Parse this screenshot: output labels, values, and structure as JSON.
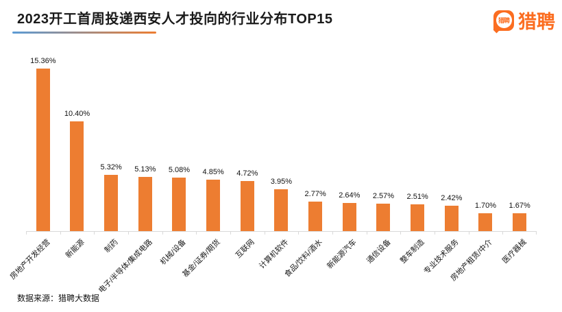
{
  "header": {
    "title": "2023开工首周投递西安人才投向的行业分布TOP15",
    "logo": {
      "badge_text": "猎聘",
      "wordmark": "猎聘"
    }
  },
  "footer": {
    "source_label": "数据来源：猎聘大数据"
  },
  "colors": {
    "bar": "#ED7D31",
    "logo_orange": "#FB6D20",
    "axis_line": "#D9D9D9",
    "title_text": "#1a1a1a",
    "underline_gradient_start": "#5B9BD5",
    "underline_gradient_end": "#ED7D31"
  },
  "chart_data": {
    "type": "bar",
    "title": "2023开工首周投递西安人才投向的行业分布TOP15",
    "categories": [
      "房地产开发经营",
      "新能源",
      "制药",
      "电子/半导体/集成电路",
      "机械/设备",
      "基金/证券/期货",
      "互联网",
      "计算机软件",
      "食品/饮料/酒水",
      "新能源汽车",
      "通信设备",
      "整车制造",
      "专业技术服务",
      "房地产租赁/中介",
      "医疗器械"
    ],
    "values": [
      15.36,
      10.4,
      5.32,
      5.13,
      5.08,
      4.85,
      4.72,
      3.95,
      2.77,
      2.64,
      2.57,
      2.51,
      2.42,
      1.7,
      1.67
    ],
    "value_labels": [
      "15.36%",
      "10.40%",
      "5.32%",
      "5.13%",
      "5.08%",
      "4.85%",
      "4.72%",
      "3.95%",
      "2.77%",
      "2.64%",
      "2.57%",
      "2.51%",
      "2.42%",
      "1.70%",
      "1.67%"
    ],
    "xlabel": "",
    "ylabel": "",
    "ylim": [
      0,
      16
    ],
    "grid": false,
    "legend": false,
    "bar_color": "#ED7D31",
    "value_label_position": "above",
    "category_label_rotation_deg": -45,
    "source": "数据来源：猎聘大数据"
  }
}
